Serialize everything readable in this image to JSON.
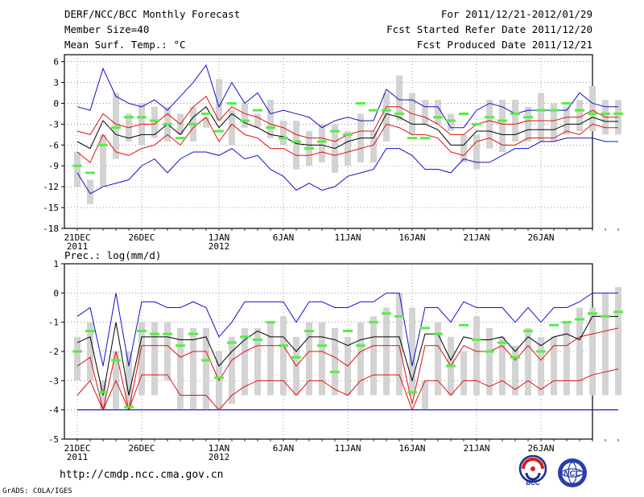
{
  "header": {
    "title": "DERF/NCC/BCC Monthly Forecast",
    "member_size": "Member Size=40",
    "variable": "Mean Surf. Temp.: °C",
    "period": "For 2011/12/21-2012/01/29",
    "start_date": "Fcst Started Refer Date 2011/12/20",
    "produced": "Fcst Produced Date 2011/12/21"
  },
  "footer": {
    "url": "http://cmdp.ncc.cma.gov.cn",
    "grads": "GrADS: COLA/IGES",
    "logo1_text": "BCC",
    "logo2_text": "NCC"
  },
  "colors": {
    "box": "#d3d3d3",
    "median": "#55ee44",
    "mean": "#000000",
    "spread": "#dd1111",
    "extreme": "#1111cc",
    "threshold": "#1111cc",
    "grid": "#555555"
  },
  "chart_data": [
    {
      "type": "ensemble-boxplot",
      "label": "Mean Surf. Temp.: °C",
      "ylim": [
        -18,
        7
      ],
      "yticks": [
        6,
        3,
        0,
        -3,
        -6,
        -9,
        -12,
        -15,
        -18
      ],
      "x_ticks": [
        {
          "day": 0,
          "label": "21DEC",
          "sub": "2011"
        },
        {
          "day": 5,
          "label": "26DEC",
          "sub": ""
        },
        {
          "day": 11,
          "label": "1JAN",
          "sub": "2012"
        },
        {
          "day": 16,
          "label": "6JAN",
          "sub": ""
        },
        {
          "day": 21,
          "label": "11JAN",
          "sub": ""
        },
        {
          "day": 26,
          "label": "16JAN",
          "sub": ""
        },
        {
          "day": 31,
          "label": "21JAN",
          "sub": ""
        },
        {
          "day": 36,
          "label": "26JAN",
          "sub": ""
        }
      ],
      "box_low": [
        -12,
        -14.5,
        -12,
        -8,
        -5.5,
        -6,
        -5,
        -5.5,
        -4.5,
        -5.5,
        -3.5,
        -2.5,
        -6,
        -3.5,
        -3.5,
        -5,
        -6,
        -9.5,
        -9,
        -8.5,
        -10,
        -9,
        -8.5,
        -8.5,
        -5.5,
        -2.5,
        -4.5,
        -3,
        -3,
        -4,
        -8.5,
        -9.5,
        -6.5,
        -7,
        -5.5,
        -5.5,
        -5.5,
        -5.5,
        -4.5,
        -4,
        -4,
        -4.5,
        -4.5
      ],
      "box_high": [
        -7,
        -11,
        -4.5,
        1.5,
        -1.5,
        0,
        -0.5,
        -0.5,
        -1.5,
        -0.5,
        -2,
        3.5,
        -1,
        0,
        -1.5,
        0.5,
        -2.5,
        -2.5,
        -4,
        -3,
        -3,
        -4,
        -1.5,
        -4,
        1.5,
        4,
        1.5,
        0.5,
        0.5,
        -1.5,
        -4.5,
        -4.5,
        0.5,
        0.5,
        0.5,
        -0.5,
        1.5,
        0,
        -0.5,
        0.5,
        2.5,
        0.5,
        0.5
      ],
      "median": [
        -9,
        -10,
        -6,
        -3.5,
        -2,
        -2,
        -2.5,
        -3,
        -5,
        -3,
        -1.5,
        -4,
        0,
        -2.5,
        -1,
        -3.5,
        -5,
        -5.5,
        -6.5,
        -5.5,
        -4,
        -4.5,
        0,
        -1,
        -1,
        -1.5,
        -5,
        -5,
        -2,
        -2.5,
        -1.5,
        -3,
        -2,
        -2.5,
        -1.5,
        -2,
        -1,
        -1,
        0,
        -1,
        -1.5,
        -1.5,
        -1.5
      ],
      "mean": [
        -5.5,
        -6.5,
        -2.5,
        -4.5,
        -5,
        -4.5,
        -4.5,
        -3,
        -4.5,
        -2,
        -0.5,
        -3.5,
        -1.5,
        -2.8,
        -3.5,
        -4.5,
        -4.8,
        -5.8,
        -6,
        -6,
        -6.5,
        -5.5,
        -5,
        -5,
        -1.5,
        -2,
        -3,
        -3,
        -3.8,
        -6,
        -6,
        -4,
        -4,
        -4.5,
        -4.5,
        -3.8,
        -3.8,
        -3.8,
        -3,
        -3,
        -2,
        -2.6,
        -2.6
      ],
      "spread_high": [
        -4,
        -4.5,
        -1.5,
        -3,
        -3.5,
        -3,
        -3,
        -1.5,
        -3,
        -0.5,
        1,
        -2.5,
        -0.5,
        -1.5,
        -2,
        -3,
        -3.5,
        -4.5,
        -5,
        -5,
        -5.5,
        -4.5,
        -4,
        -4,
        -0.5,
        -0.5,
        -1.5,
        -2,
        -3,
        -4.5,
        -4.5,
        -3,
        -2.5,
        -3,
        -3,
        -2.5,
        -2.5,
        -2.5,
        -2,
        -2,
        -1,
        -2,
        -2
      ],
      "spread_low": [
        -7,
        -8.5,
        -4.5,
        -7,
        -7.5,
        -6.5,
        -6,
        -4.5,
        -6,
        -3.5,
        -2,
        -5.5,
        -3,
        -4.5,
        -5,
        -6.5,
        -6.5,
        -7.5,
        -7.5,
        -7,
        -7.5,
        -7,
        -6.5,
        -6,
        -3,
        -3.5,
        -4.5,
        -4.5,
        -5,
        -7,
        -7.5,
        -5.5,
        -5,
        -6,
        -6,
        -5,
        -5,
        -5,
        -4,
        -4.5,
        -3,
        -3.5,
        -3.5
      ],
      "max": [
        -0.5,
        -1,
        5,
        1,
        0,
        -0.5,
        0.5,
        -1,
        1,
        3,
        5.5,
        -0.5,
        3,
        0,
        1.5,
        -1.5,
        -1,
        -1.5,
        -2,
        -3.5,
        -2.5,
        -2,
        -2.5,
        -2.5,
        2,
        0.5,
        0.5,
        -0.5,
        -0.5,
        -3.5,
        -3.5,
        -1,
        0,
        -0.5,
        -1.5,
        -1,
        -1,
        -1,
        -1,
        1.5,
        0,
        -0.5,
        -0.5
      ],
      "min": [
        -10,
        -13,
        -12,
        -11.5,
        -11,
        -9,
        -8,
        -10,
        -8,
        -7,
        -7,
        -7.5,
        -6.5,
        -8,
        -7.5,
        -9.5,
        -10.5,
        -12.5,
        -11.5,
        -12.5,
        -12,
        -10.5,
        -10,
        -9.5,
        -6.5,
        -6.5,
        -7.5,
        -9.5,
        -9.5,
        -10,
        -8,
        -8.5,
        -8.5,
        -7.5,
        -6.5,
        -6.5,
        -5.5,
        -5.5,
        -5,
        -5,
        -5,
        -5.5,
        -5.5
      ]
    },
    {
      "type": "ensemble-boxplot",
      "label": "Prec.: log(mm/d)",
      "ylim": [
        -5,
        1
      ],
      "yticks": [
        1,
        0,
        -1,
        -2,
        -3,
        -4,
        -5
      ],
      "threshold": -4,
      "x_ticks": [
        {
          "day": 0,
          "label": "21DEC",
          "sub": "2011"
        },
        {
          "day": 5,
          "label": "26DEC",
          "sub": ""
        },
        {
          "day": 11,
          "label": "1JAN",
          "sub": "2012"
        },
        {
          "day": 16,
          "label": "6JAN",
          "sub": ""
        },
        {
          "day": 21,
          "label": "11JAN",
          "sub": ""
        },
        {
          "day": 26,
          "label": "16JAN",
          "sub": ""
        },
        {
          "day": 31,
          "label": "21JAN",
          "sub": ""
        },
        {
          "day": 36,
          "label": "26JAN",
          "sub": ""
        }
      ],
      "box_low": [
        -3,
        -3,
        -4,
        -4,
        -4,
        -3.5,
        -3.5,
        -3,
        -4,
        -4,
        -4,
        -4,
        -3.8,
        -3.5,
        -3.5,
        -3.5,
        -3.5,
        -3.5,
        -3.5,
        -3.5,
        -3.5,
        -3.5,
        -3.5,
        -3.5,
        -3.5,
        -3.5,
        -3.5,
        -4,
        -3.5,
        -3.5,
        -3.5,
        -3.5,
        -3.5,
        -3.5,
        -3.5,
        -3.5,
        -3.5,
        -3.5,
        -3.5,
        -3.5,
        -3.5,
        -3.5,
        -3.5
      ],
      "box_high": [
        -1.5,
        -1,
        -3,
        -2,
        -2,
        -1,
        -1,
        -1,
        -1.2,
        -1.2,
        -1.2,
        -2,
        -1.5,
        -1.2,
        -1.2,
        -1,
        -0.8,
        -1.5,
        -1,
        -1,
        -1.2,
        -1.5,
        -1,
        -0.8,
        -0.5,
        0,
        -0.5,
        -3,
        -1,
        -1.5,
        -2,
        -0.8,
        -1.2,
        -1.5,
        -1.8,
        -1.2,
        -1.5,
        -1.5,
        -1,
        -0.5,
        -0.5,
        0,
        0.2
      ],
      "median": [
        -2,
        -1.3,
        -3.4,
        -2.3,
        -3.9,
        -1.3,
        -1.4,
        -1.4,
        -1.8,
        -1.4,
        -2.3,
        -2.9,
        -1.7,
        -1.5,
        -1.6,
        -1,
        -1.8,
        -2.2,
        -1.3,
        -1.8,
        -2.7,
        -1.3,
        -1.8,
        -1,
        -0.7,
        -0.8,
        -3.4,
        -1.2,
        -1.4,
        -2.5,
        -1.1,
        -1.6,
        -2,
        -1.7,
        -2.2,
        -1.3,
        -2,
        -1.1,
        -1,
        -0.9,
        -0.7,
        -0.8,
        -0.65
      ],
      "mean": [
        -1.7,
        -1.5,
        -3.5,
        -1,
        -3.5,
        -1.5,
        -1.5,
        -1.5,
        -1.6,
        -1.6,
        -1.5,
        -2.5,
        -2,
        -1.6,
        -1.3,
        -1.5,
        -1.5,
        -2,
        -1.5,
        -1.5,
        -1.6,
        -1.8,
        -1.6,
        -1.5,
        -1.5,
        -1.5,
        -3,
        -1.4,
        -1.4,
        -2.3,
        -1.5,
        -1.6,
        -1.6,
        -1.5,
        -2,
        -1.5,
        -1.8,
        -1.5,
        -1.4,
        -1.6,
        -0.8,
        -0.8,
        -0.8
      ],
      "spread_high": [
        -2.5,
        -2.2,
        -4,
        -2,
        -4,
        -1.8,
        -1.8,
        -1.8,
        -2.2,
        -2,
        -2,
        -3,
        -2.3,
        -2,
        -1.8,
        -1.8,
        -1.8,
        -2.5,
        -2,
        -2,
        -2.2,
        -2.5,
        -2,
        -1.8,
        -1.8,
        -1.8,
        -3.8,
        -1.8,
        -1.8,
        -2.5,
        -1.8,
        -2,
        -2,
        -1.8,
        -2.3,
        -1.8,
        -2.3,
        -1.8,
        -1.8,
        -1.5,
        -1.4,
        -1.3,
        -1.2
      ],
      "spread_low": [
        -3.5,
        -3,
        -4,
        -3,
        -4,
        -2.8,
        -2.8,
        -2.8,
        -3.5,
        -3.5,
        -3.5,
        -4,
        -3.5,
        -3.2,
        -3,
        -3,
        -3,
        -3.5,
        -3,
        -3,
        -3.3,
        -3.5,
        -3,
        -2.8,
        -2.8,
        -2.8,
        -4,
        -3,
        -3,
        -3.5,
        -3,
        -3,
        -3.2,
        -3,
        -3.3,
        -3,
        -3.3,
        -3,
        -3,
        -3,
        -2.8,
        -2.7,
        -2.6
      ],
      "max": [
        -0.8,
        -0.5,
        -2.5,
        0,
        -2.5,
        -0.3,
        -0.3,
        -0.5,
        -0.5,
        -0.3,
        -0.5,
        -1.5,
        -1,
        -0.3,
        -0.3,
        -0.3,
        -0.3,
        -1,
        -0.3,
        -0.3,
        -0.5,
        -0.5,
        -0.3,
        -0.3,
        0,
        0,
        -2.5,
        -0.5,
        -0.5,
        -1,
        -0.3,
        -0.5,
        -0.5,
        -0.5,
        -1,
        -0.5,
        -1,
        -0.5,
        -0.5,
        -0.3,
        0,
        0,
        0
      ],
      "min": [
        -4,
        -4,
        -4,
        -4,
        -4,
        -4,
        -4,
        -4,
        -4,
        -4,
        -4,
        -4,
        -4,
        -4,
        -4,
        -4,
        -4,
        -4,
        -4,
        -4,
        -4,
        -4,
        -4,
        -4,
        -4,
        -4,
        -4,
        -4,
        -4,
        -4,
        -4,
        -4,
        -4,
        -4,
        -4,
        -4,
        -4,
        -4,
        -4,
        -4,
        -4,
        -4,
        -4
      ]
    }
  ]
}
